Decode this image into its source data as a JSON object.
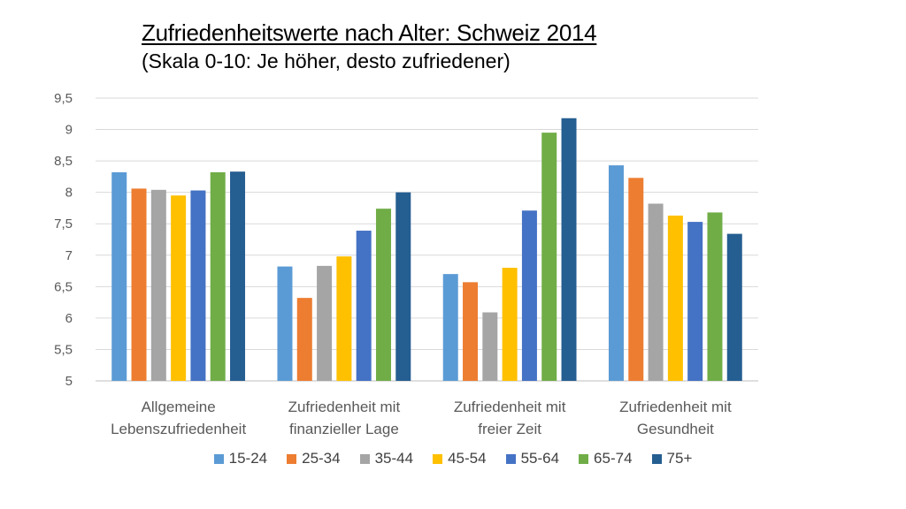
{
  "chart_data": {
    "type": "bar",
    "title": "Zufriedenheitswerte nach Alter: Schweiz 2014",
    "subtitle": "(Skala 0-10: Je höher, desto zufriedener)",
    "categories": [
      [
        "Allgemeine",
        "Lebenszufriedenheit"
      ],
      [
        "Zufriedenheit mit",
        "finanzieller Lage"
      ],
      [
        "Zufriedenheit mit",
        "freier Zeit"
      ],
      [
        "Zufriedenheit mit",
        "Gesundheit"
      ]
    ],
    "series": [
      {
        "name": "15-24",
        "color": "#5B9BD5",
        "values": [
          8.32,
          6.82,
          6.7,
          8.43
        ]
      },
      {
        "name": "25-34",
        "color": "#ED7D31",
        "values": [
          8.06,
          6.32,
          6.57,
          8.23
        ]
      },
      {
        "name": "35-44",
        "color": "#A5A5A5",
        "values": [
          8.04,
          6.83,
          6.09,
          7.82
        ]
      },
      {
        "name": "45-54",
        "color": "#FFC000",
        "values": [
          7.95,
          6.98,
          6.8,
          7.63
        ]
      },
      {
        "name": "55-64",
        "color": "#4472C4",
        "values": [
          8.03,
          7.39,
          7.71,
          7.53
        ]
      },
      {
        "name": "65-74",
        "color": "#70AD47",
        "values": [
          8.32,
          7.74,
          8.95,
          7.68
        ]
      },
      {
        "name": "75+",
        "color": "#255E91",
        "values": [
          8.33,
          8.0,
          9.18,
          7.34
        ]
      }
    ],
    "ylim": [
      5,
      9.5
    ],
    "yticks": [
      "5",
      "5,5",
      "6",
      "6,5",
      "7",
      "7,5",
      "8",
      "8,5",
      "9",
      "9,5"
    ],
    "xlabel": "",
    "ylabel": "",
    "grid": true,
    "legend_position": "bottom"
  }
}
